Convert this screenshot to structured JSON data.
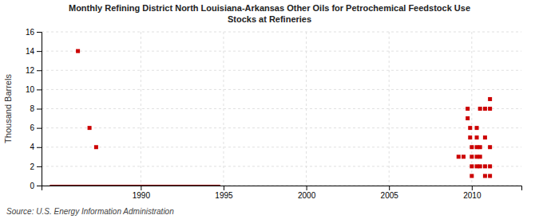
{
  "chart_data": {
    "type": "scatter",
    "title": "Monthly Refining District North Louisiana-Arkansas Other Oils for Petrochemical Feedstock Use\nStocks at Refineries",
    "y_label": "Thousand Barrels",
    "annotations": [
      "Source: U.S. Energy Information Administration"
    ],
    "xlim": [
      1984,
      2013
    ],
    "ylim": [
      0,
      16
    ],
    "xticks": [
      1990,
      1995,
      2000,
      2005,
      2010
    ],
    "yticks": [
      0,
      2,
      4,
      6,
      8,
      10,
      12,
      14,
      16
    ],
    "grid": true,
    "series": [
      {
        "type": "scatter",
        "color": "#cc0000",
        "marker": "square",
        "x": [
          1986.2,
          1986.9,
          1987.3,
          2009.2,
          2009.5,
          2009.75,
          2009.75,
          2009.9,
          2009.9,
          2010.0,
          2010.0,
          2010.0,
          2010.0,
          2010.3,
          2010.3,
          2010.3,
          2010.3,
          2010.3,
          2010.5,
          2010.5,
          2010.5,
          2010.5,
          2010.8,
          2010.8,
          2010.8,
          2010.8,
          2011.1,
          2011.1,
          2011.1,
          2011.1,
          2011.1
        ],
        "values": [
          14,
          6,
          4,
          3,
          3,
          8,
          7,
          6,
          5,
          4,
          3,
          2,
          1,
          6,
          5,
          4,
          3,
          2,
          8,
          4,
          3,
          2,
          8,
          5,
          2,
          1,
          9,
          8,
          4,
          2,
          1
        ]
      },
      {
        "type": "line",
        "color": "#8b0000",
        "line_style": "solid",
        "x": [
          1984.5,
          1994.8
        ],
        "values": [
          0,
          0
        ]
      }
    ]
  }
}
